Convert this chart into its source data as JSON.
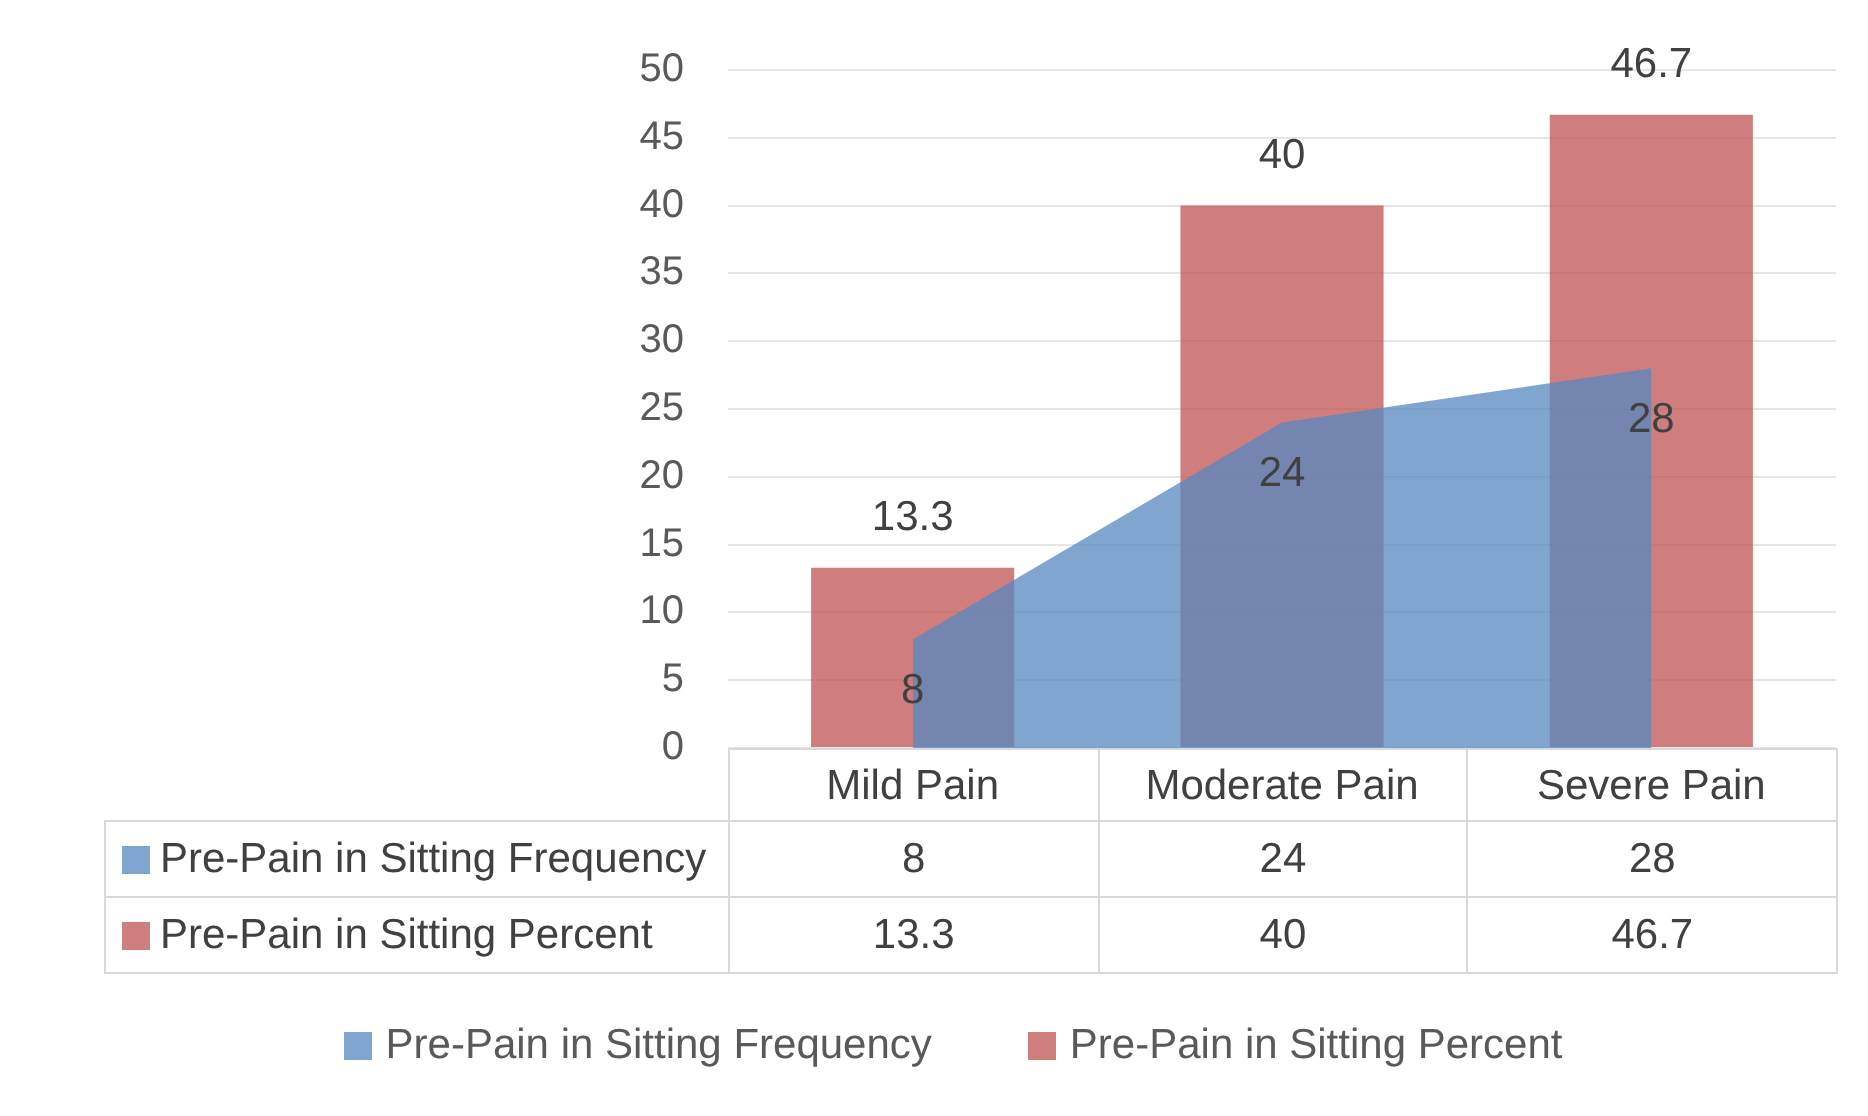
{
  "chart_data": {
    "type": "bar",
    "categories": [
      "Mild Pain",
      "Moderate Pain",
      "Severe Pain"
    ],
    "series": [
      {
        "name": "Pre-Pain in Sitting Frequency",
        "type": "area",
        "color": "#80a6d0",
        "values": [
          8,
          24,
          28
        ],
        "value_labels": [
          "8",
          "24",
          "28"
        ]
      },
      {
        "name": "Pre-Pain in Sitting Percent",
        "color": "#d07d7d",
        "values": [
          13.3,
          40,
          46.7
        ],
        "value_labels": [
          "13.3",
          "40",
          "46.7"
        ]
      }
    ],
    "ylim": [
      0,
      50
    ],
    "yticks": [
      0,
      5,
      10,
      15,
      20,
      25,
      30,
      35,
      40,
      45,
      50
    ],
    "grid": "y",
    "legend": "bottom",
    "annotations": [
      "8",
      "24",
      "28",
      "13.3",
      "40",
      "46.7"
    ]
  }
}
